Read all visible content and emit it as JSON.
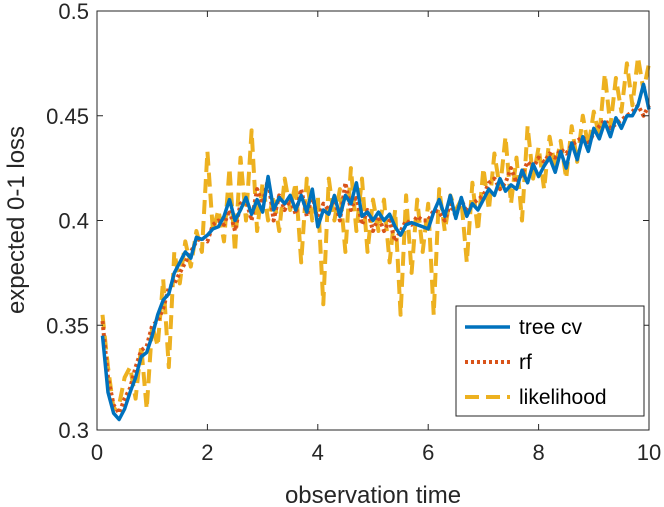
{
  "chart_data": {
    "type": "line",
    "title": "",
    "xlabel": "observation time",
    "ylabel": "expected 0-1 loss",
    "xlim": [
      0,
      10
    ],
    "ylim": [
      0.3,
      0.5
    ],
    "xticks": [
      0,
      2,
      4,
      6,
      8,
      10
    ],
    "yticks": [
      0.3,
      0.35,
      0.4,
      0.45,
      0.5
    ],
    "xtick_labels": [
      "0",
      "2",
      "4",
      "6",
      "8",
      "10"
    ],
    "ytick_labels": [
      "0.3",
      "0.35",
      "0.4",
      "0.45",
      "0.5"
    ],
    "grid": false,
    "legend_position": "bottom-right",
    "colors": {
      "tree_cv": "#0072BD",
      "rf": "#D95319",
      "likelihood": "#EDB120",
      "axis": "#262626"
    },
    "series": [
      {
        "name": "tree cv",
        "style": "solid",
        "x": [
          0.1,
          0.2,
          0.3,
          0.4,
          0.5,
          0.6,
          0.7,
          0.8,
          0.9,
          1.0,
          1.1,
          1.2,
          1.3,
          1.4,
          1.5,
          1.6,
          1.7,
          1.8,
          1.9,
          2.0,
          2.1,
          2.2,
          2.3,
          2.4,
          2.5,
          2.6,
          2.7,
          2.8,
          2.9,
          3.0,
          3.1,
          3.2,
          3.3,
          3.4,
          3.5,
          3.6,
          3.7,
          3.8,
          3.9,
          4.0,
          4.1,
          4.2,
          4.3,
          4.4,
          4.5,
          4.6,
          4.7,
          4.8,
          4.9,
          5.0,
          5.1,
          5.2,
          5.3,
          5.4,
          5.5,
          5.6,
          5.7,
          5.8,
          5.9,
          6.0,
          6.1,
          6.2,
          6.3,
          6.4,
          6.5,
          6.6,
          6.7,
          6.8,
          6.9,
          7.0,
          7.1,
          7.2,
          7.3,
          7.4,
          7.5,
          7.6,
          7.7,
          7.8,
          7.9,
          8.0,
          8.1,
          8.2,
          8.3,
          8.4,
          8.5,
          8.6,
          8.7,
          8.8,
          8.9,
          9.0,
          9.1,
          9.2,
          9.3,
          9.4,
          9.5,
          9.6,
          9.7,
          9.8,
          9.9,
          10.0
        ],
        "values": [
          0.345,
          0.318,
          0.308,
          0.305,
          0.31,
          0.318,
          0.325,
          0.335,
          0.337,
          0.345,
          0.355,
          0.362,
          0.365,
          0.375,
          0.38,
          0.385,
          0.382,
          0.392,
          0.391,
          0.393,
          0.396,
          0.397,
          0.402,
          0.41,
          0.4,
          0.405,
          0.411,
          0.403,
          0.41,
          0.404,
          0.421,
          0.405,
          0.411,
          0.408,
          0.412,
          0.405,
          0.412,
          0.404,
          0.415,
          0.397,
          0.405,
          0.403,
          0.412,
          0.402,
          0.412,
          0.408,
          0.418,
          0.402,
          0.404,
          0.4,
          0.404,
          0.4,
          0.403,
          0.397,
          0.393,
          0.398,
          0.399,
          0.398,
          0.397,
          0.396,
          0.404,
          0.41,
          0.402,
          0.412,
          0.401,
          0.411,
          0.402,
          0.408,
          0.405,
          0.41,
          0.415,
          0.412,
          0.42,
          0.414,
          0.417,
          0.415,
          0.424,
          0.418,
          0.427,
          0.421,
          0.426,
          0.43,
          0.423,
          0.433,
          0.425,
          0.437,
          0.429,
          0.44,
          0.433,
          0.444,
          0.439,
          0.447,
          0.44,
          0.449,
          0.444,
          0.45,
          0.45,
          0.455,
          0.465,
          0.453
        ]
      },
      {
        "name": "rf",
        "style": "dotted",
        "x": [
          0.1,
          0.2,
          0.3,
          0.4,
          0.5,
          0.6,
          0.7,
          0.8,
          0.9,
          1.0,
          1.1,
          1.2,
          1.3,
          1.4,
          1.5,
          1.6,
          1.7,
          1.8,
          1.9,
          2.0,
          2.1,
          2.2,
          2.3,
          2.4,
          2.5,
          2.6,
          2.7,
          2.8,
          2.9,
          3.0,
          3.1,
          3.2,
          3.3,
          3.4,
          3.5,
          3.6,
          3.7,
          3.8,
          3.9,
          4.0,
          4.1,
          4.2,
          4.3,
          4.4,
          4.5,
          4.6,
          4.7,
          4.8,
          4.9,
          5.0,
          5.1,
          5.2,
          5.3,
          5.4,
          5.5,
          5.6,
          5.7,
          5.8,
          5.9,
          6.0,
          6.1,
          6.2,
          6.3,
          6.4,
          6.5,
          6.6,
          6.7,
          6.8,
          6.9,
          7.0,
          7.1,
          7.2,
          7.3,
          7.4,
          7.5,
          7.6,
          7.7,
          7.8,
          7.9,
          8.0,
          8.1,
          8.2,
          8.3,
          8.4,
          8.5,
          8.6,
          8.7,
          8.8,
          8.9,
          9.0,
          9.1,
          9.2,
          9.3,
          9.4,
          9.5,
          9.6,
          9.7,
          9.8,
          9.9,
          10.0
        ],
        "values": [
          0.352,
          0.325,
          0.312,
          0.308,
          0.315,
          0.32,
          0.33,
          0.338,
          0.34,
          0.35,
          0.352,
          0.358,
          0.368,
          0.37,
          0.375,
          0.38,
          0.385,
          0.39,
          0.392,
          0.39,
          0.398,
          0.4,
          0.398,
          0.405,
          0.395,
          0.408,
          0.41,
          0.4,
          0.415,
          0.408,
          0.42,
          0.4,
          0.412,
          0.405,
          0.41,
          0.403,
          0.415,
          0.402,
          0.412,
          0.4,
          0.408,
          0.405,
          0.41,
          0.4,
          0.418,
          0.405,
          0.412,
          0.398,
          0.405,
          0.395,
          0.402,
          0.395,
          0.4,
          0.39,
          0.395,
          0.4,
          0.398,
          0.402,
          0.4,
          0.4,
          0.405,
          0.404,
          0.4,
          0.408,
          0.402,
          0.41,
          0.404,
          0.408,
          0.41,
          0.412,
          0.418,
          0.42,
          0.415,
          0.418,
          0.425,
          0.418,
          0.422,
          0.428,
          0.425,
          0.43,
          0.428,
          0.432,
          0.43,
          0.434,
          0.432,
          0.436,
          0.438,
          0.44,
          0.436,
          0.442,
          0.445,
          0.448,
          0.444,
          0.446,
          0.448,
          0.45,
          0.452,
          0.455,
          0.45,
          0.455
        ]
      },
      {
        "name": "likelihood",
        "style": "dashed",
        "x": [
          0.1,
          0.2,
          0.3,
          0.4,
          0.5,
          0.6,
          0.7,
          0.8,
          0.9,
          1.0,
          1.1,
          1.2,
          1.3,
          1.4,
          1.5,
          1.6,
          1.7,
          1.8,
          1.9,
          2.0,
          2.1,
          2.2,
          2.3,
          2.4,
          2.5,
          2.6,
          2.7,
          2.8,
          2.9,
          3.0,
          3.1,
          3.2,
          3.3,
          3.4,
          3.5,
          3.6,
          3.7,
          3.8,
          3.9,
          4.0,
          4.1,
          4.2,
          4.3,
          4.4,
          4.5,
          4.6,
          4.7,
          4.8,
          4.9,
          5.0,
          5.1,
          5.2,
          5.3,
          5.4,
          5.5,
          5.6,
          5.7,
          5.8,
          5.9,
          6.0,
          6.1,
          6.2,
          6.3,
          6.4,
          6.5,
          6.6,
          6.7,
          6.8,
          6.9,
          7.0,
          7.1,
          7.2,
          7.3,
          7.4,
          7.5,
          7.6,
          7.7,
          7.8,
          7.9,
          8.0,
          8.1,
          8.2,
          8.3,
          8.4,
          8.5,
          8.6,
          8.7,
          8.8,
          8.9,
          9.0,
          9.1,
          9.2,
          9.3,
          9.4,
          9.5,
          9.6,
          9.7,
          9.8,
          9.9,
          10.0
        ],
        "values": [
          0.355,
          0.33,
          0.31,
          0.312,
          0.325,
          0.33,
          0.315,
          0.34,
          0.31,
          0.35,
          0.34,
          0.372,
          0.33,
          0.385,
          0.37,
          0.39,
          0.378,
          0.395,
          0.385,
          0.433,
          0.395,
          0.405,
          0.39,
          0.425,
          0.385,
          0.43,
          0.4,
          0.443,
          0.395,
          0.418,
          0.4,
          0.412,
          0.395,
          0.42,
          0.405,
          0.418,
          0.38,
          0.42,
          0.4,
          0.412,
          0.36,
          0.42,
          0.4,
          0.415,
          0.385,
          0.425,
          0.395,
          0.42,
          0.385,
          0.41,
          0.395,
          0.41,
          0.38,
          0.405,
          0.355,
          0.412,
          0.375,
          0.41,
          0.385,
          0.408,
          0.355,
          0.415,
          0.395,
          0.412,
          0.405,
          0.41,
          0.38,
          0.418,
          0.395,
          0.425,
          0.405,
          0.432,
          0.415,
          0.44,
          0.408,
          0.43,
          0.4,
          0.445,
          0.42,
          0.435,
          0.415,
          0.44,
          0.425,
          0.438,
          0.42,
          0.445,
          0.428,
          0.45,
          0.435,
          0.452,
          0.44,
          0.47,
          0.445,
          0.468,
          0.452,
          0.475,
          0.455,
          0.478,
          0.462,
          0.475
        ]
      }
    ]
  }
}
